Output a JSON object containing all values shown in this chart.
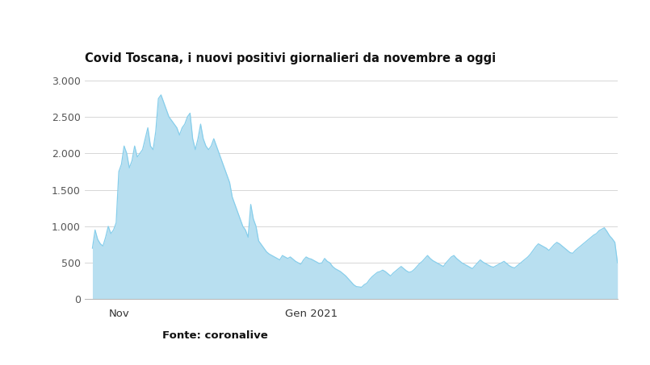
{
  "title": "Covid Toscana, i nuovi positivi giornalieri da novembre a oggi",
  "fonte_label": "Fonte: coronalive",
  "ytick_values": [
    0,
    500,
    1000,
    1500,
    2000,
    2500,
    3000
  ],
  "ylim": [
    0,
    3100
  ],
  "line_color": "#87ceeb",
  "fill_color": "#b8dff0",
  "fill_alpha": 1.0,
  "background_color": "#ffffff",
  "title_fontsize": 10.5,
  "values": [
    700,
    950,
    820,
    760,
    730,
    850,
    1000,
    900,
    950,
    1050,
    1750,
    1850,
    2100,
    2000,
    1800,
    1900,
    2100,
    1950,
    2000,
    2050,
    2200,
    2350,
    2100,
    2050,
    2300,
    2750,
    2800,
    2700,
    2600,
    2500,
    2450,
    2400,
    2350,
    2250,
    2350,
    2400,
    2500,
    2550,
    2200,
    2050,
    2200,
    2400,
    2200,
    2100,
    2050,
    2100,
    2200,
    2100,
    2000,
    1900,
    1800,
    1700,
    1600,
    1400,
    1300,
    1200,
    1100,
    1000,
    950,
    850,
    1300,
    1100,
    1000,
    800,
    750,
    700,
    650,
    620,
    600,
    580,
    560,
    540,
    600,
    580,
    560,
    580,
    550,
    520,
    500,
    480,
    540,
    580,
    560,
    550,
    530,
    510,
    490,
    500,
    560,
    520,
    500,
    450,
    420,
    400,
    380,
    350,
    320,
    280,
    240,
    200,
    175,
    170,
    165,
    200,
    220,
    270,
    310,
    340,
    370,
    380,
    400,
    380,
    350,
    320,
    360,
    390,
    420,
    450,
    420,
    390,
    370,
    380,
    410,
    450,
    490,
    520,
    560,
    600,
    560,
    530,
    510,
    490,
    470,
    450,
    500,
    540,
    580,
    600,
    560,
    530,
    500,
    480,
    460,
    440,
    420,
    460,
    500,
    540,
    510,
    490,
    470,
    450,
    440,
    460,
    480,
    500,
    520,
    490,
    460,
    440,
    430,
    460,
    490,
    520,
    550,
    580,
    620,
    670,
    720,
    760,
    740,
    720,
    700,
    670,
    710,
    750,
    780,
    760,
    730,
    700,
    670,
    640,
    630,
    670,
    700,
    730,
    760,
    790,
    820,
    850,
    880,
    900,
    940,
    960,
    980,
    930,
    870,
    830,
    780,
    500
  ],
  "nov_idx": 10,
  "gen_idx": 83,
  "total_points": 200
}
